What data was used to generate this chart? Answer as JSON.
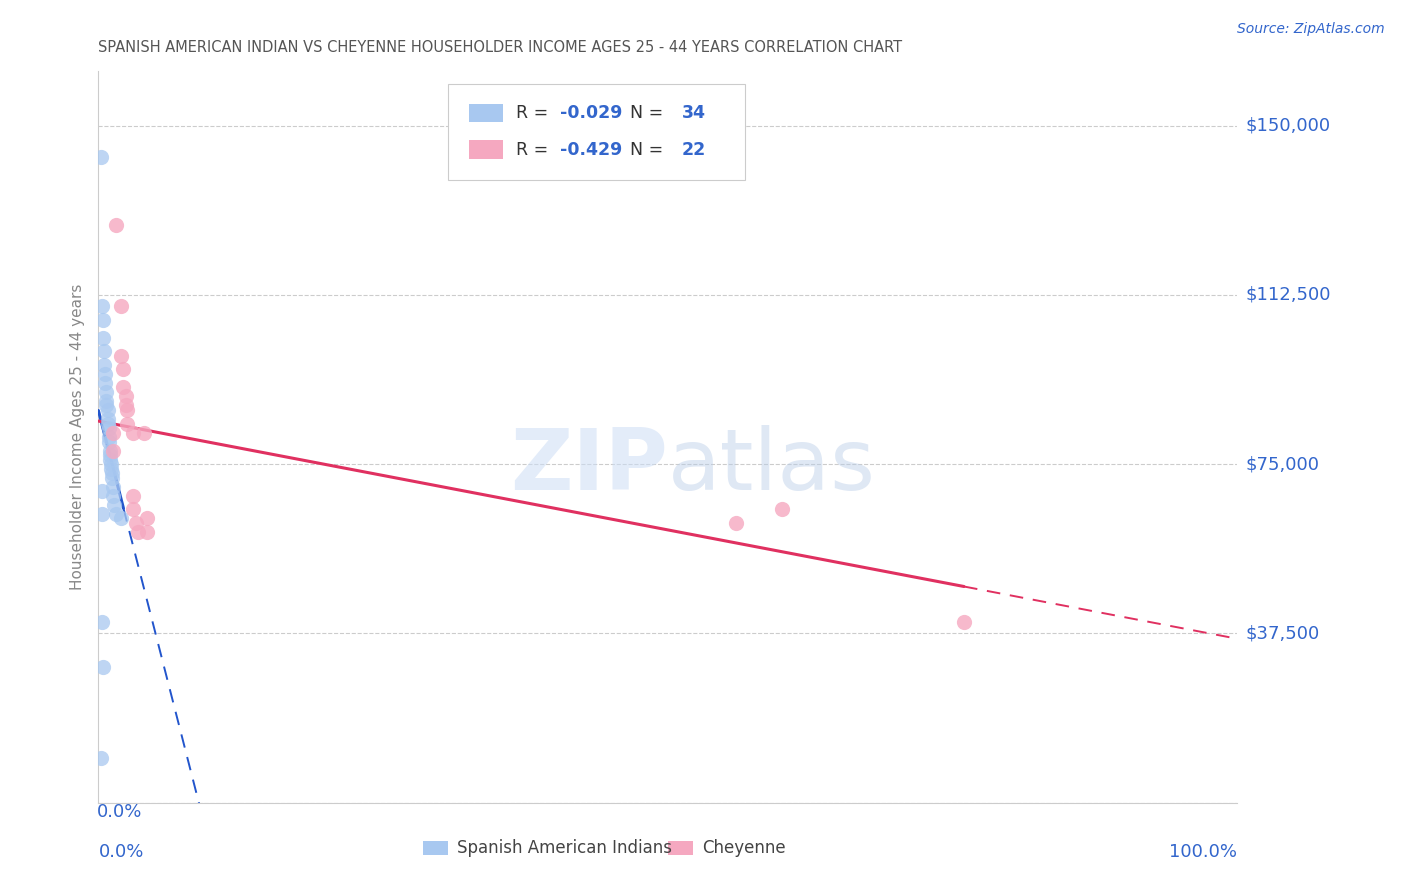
{
  "title": "SPANISH AMERICAN INDIAN VS CHEYENNE HOUSEHOLDER INCOME AGES 25 - 44 YEARS CORRELATION CHART",
  "source": "Source: ZipAtlas.com",
  "ylabel": "Householder Income Ages 25 - 44 years",
  "yticks": [
    0,
    37500,
    75000,
    112500,
    150000
  ],
  "ytick_labels": [
    "",
    "$37,500",
    "$75,000",
    "$112,500",
    "$150,000"
  ],
  "xlim": [
    0.0,
    1.0
  ],
  "ylim": [
    0,
    162000
  ],
  "blue_R": "-0.029",
  "blue_N": "34",
  "pink_R": "-0.429",
  "pink_N": "22",
  "legend_label_blue": "Spanish American Indians",
  "legend_label_pink": "Cheyenne",
  "watermark_zip": "ZIP",
  "watermark_atlas": "atlas",
  "blue_color": "#a8c8f0",
  "pink_color": "#f5a8c0",
  "blue_line_color": "#2255cc",
  "pink_line_color": "#e03060",
  "text_color": "#3366cc",
  "blue_scatter": [
    [
      0.002,
      143000
    ],
    [
      0.003,
      110000
    ],
    [
      0.004,
      107000
    ],
    [
      0.004,
      103000
    ],
    [
      0.005,
      100000
    ],
    [
      0.005,
      97000
    ],
    [
      0.006,
      95000
    ],
    [
      0.006,
      93000
    ],
    [
      0.007,
      91000
    ],
    [
      0.007,
      89000
    ],
    [
      0.007,
      88000
    ],
    [
      0.008,
      87000
    ],
    [
      0.008,
      85000
    ],
    [
      0.008,
      84000
    ],
    [
      0.009,
      83000
    ],
    [
      0.009,
      81000
    ],
    [
      0.009,
      80000
    ],
    [
      0.01,
      78000
    ],
    [
      0.01,
      77000
    ],
    [
      0.01,
      76000
    ],
    [
      0.011,
      75000
    ],
    [
      0.011,
      74000
    ],
    [
      0.012,
      73000
    ],
    [
      0.012,
      72000
    ],
    [
      0.013,
      70000
    ],
    [
      0.013,
      68000
    ],
    [
      0.014,
      66000
    ],
    [
      0.015,
      64000
    ],
    [
      0.02,
      63000
    ],
    [
      0.003,
      40000
    ],
    [
      0.004,
      30000
    ],
    [
      0.002,
      10000
    ],
    [
      0.003,
      69000
    ],
    [
      0.003,
      64000
    ]
  ],
  "pink_scatter": [
    [
      0.015,
      128000
    ],
    [
      0.02,
      110000
    ],
    [
      0.02,
      99000
    ],
    [
      0.022,
      96000
    ],
    [
      0.022,
      92000
    ],
    [
      0.024,
      90000
    ],
    [
      0.024,
      88000
    ],
    [
      0.025,
      87000
    ],
    [
      0.025,
      84000
    ],
    [
      0.03,
      82000
    ],
    [
      0.03,
      68000
    ],
    [
      0.03,
      65000
    ],
    [
      0.033,
      62000
    ],
    [
      0.035,
      60000
    ],
    [
      0.04,
      82000
    ],
    [
      0.043,
      60000
    ],
    [
      0.56,
      62000
    ],
    [
      0.6,
      65000
    ],
    [
      0.76,
      40000
    ],
    [
      0.013,
      82000
    ],
    [
      0.013,
      78000
    ],
    [
      0.043,
      63000
    ]
  ]
}
